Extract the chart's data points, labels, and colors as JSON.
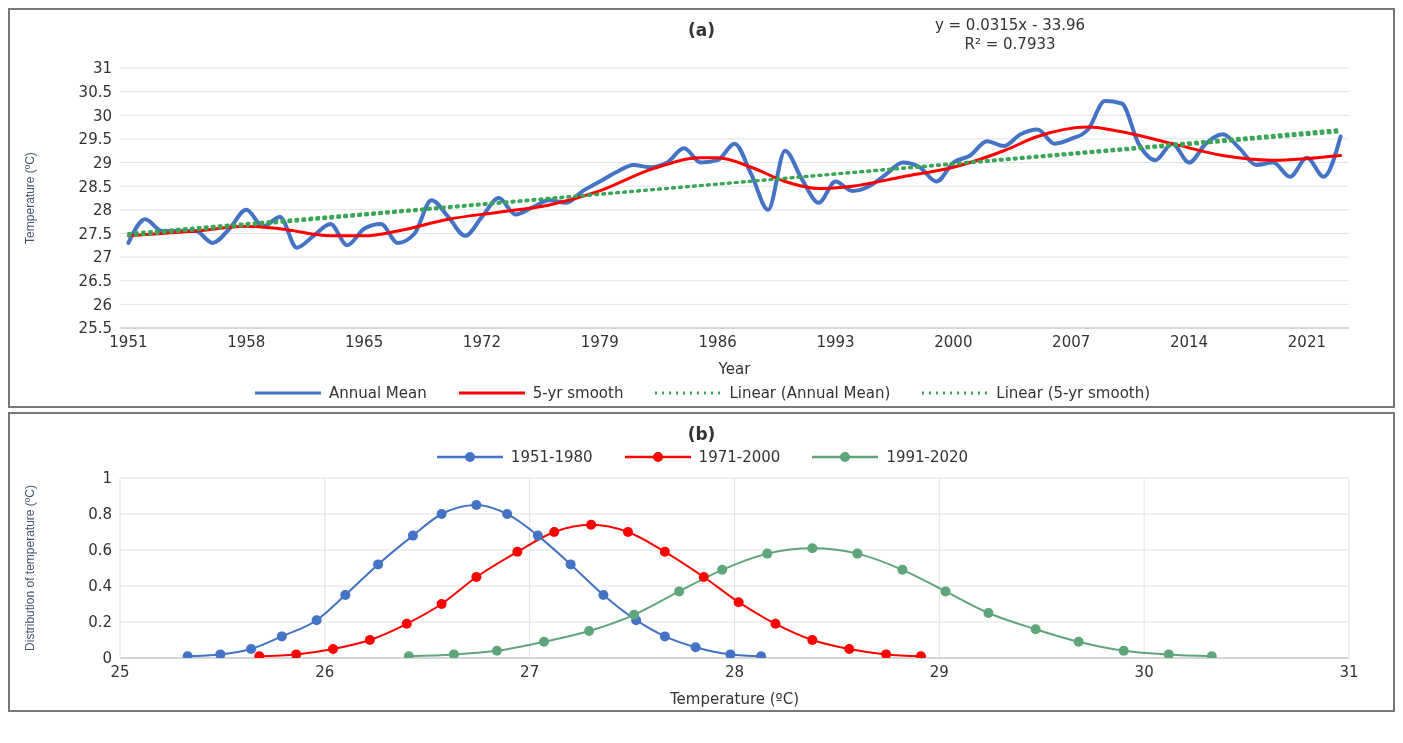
{
  "chart_data": [
    {
      "type": "line",
      "title": "(a)",
      "xlabel": "Year",
      "ylabel": "Temperature (ºC)",
      "annotations": [
        "y = 0.0315x - 33.96",
        "R² = 0.7933"
      ],
      "x": [
        1951,
        1952,
        1953,
        1954,
        1955,
        1956,
        1957,
        1958,
        1959,
        1960,
        1961,
        1962,
        1963,
        1964,
        1965,
        1966,
        1967,
        1968,
        1969,
        1970,
        1971,
        1972,
        1973,
        1974,
        1975,
        1976,
        1977,
        1978,
        1979,
        1980,
        1981,
        1982,
        1983,
        1984,
        1985,
        1986,
        1987,
        1988,
        1989,
        1990,
        1991,
        1992,
        1993,
        1994,
        1995,
        1996,
        1997,
        1998,
        1999,
        2000,
        2001,
        2002,
        2003,
        2004,
        2005,
        2006,
        2007,
        2008,
        2009,
        2010,
        2011,
        2012,
        2013,
        2014,
        2015,
        2016,
        2017,
        2018,
        2019,
        2020,
        2021,
        2022,
        2023
      ],
      "series": [
        {
          "name": "Annual Mean",
          "color": "#4472c4",
          "line_style": "solid",
          "values": [
            27.3,
            27.8,
            27.55,
            27.55,
            27.55,
            27.3,
            27.6,
            28.0,
            27.65,
            27.85,
            27.2,
            27.45,
            27.7,
            27.25,
            27.6,
            27.7,
            27.3,
            27.5,
            28.2,
            27.85,
            27.45,
            27.85,
            28.25,
            27.9,
            28.05,
            28.2,
            28.15,
            28.4,
            28.6,
            28.8,
            28.95,
            28.9,
            29.0,
            29.3,
            29.0,
            29.05,
            29.4,
            28.75,
            28.0,
            29.25,
            28.65,
            28.15,
            28.6,
            28.4,
            28.5,
            28.75,
            29.0,
            28.9,
            28.6,
            29.0,
            29.15,
            29.45,
            29.35,
            29.6,
            29.7,
            29.4,
            29.5,
            29.7,
            30.3,
            30.25,
            29.4,
            29.05,
            29.4,
            29.0,
            29.4,
            29.6,
            29.3,
            28.95,
            29.0,
            28.7,
            29.1,
            28.7,
            29.55
          ]
        },
        {
          "name": "5-yr smooth",
          "color": "#ff0000",
          "line_style": "solid",
          "x": [
            1951,
            1955,
            1958,
            1960,
            1963,
            1965,
            1967,
            1970,
            1973,
            1976,
            1979,
            1982,
            1985,
            1986,
            1988,
            1990,
            1992,
            1994,
            1997,
            2000,
            2003,
            2005,
            2008,
            2010,
            2013,
            2016,
            2019,
            2023
          ],
          "values": [
            27.45,
            27.55,
            27.65,
            27.6,
            27.45,
            27.45,
            27.55,
            27.8,
            27.95,
            28.1,
            28.4,
            28.85,
            29.1,
            29.1,
            28.9,
            28.6,
            28.45,
            28.5,
            28.7,
            28.9,
            29.25,
            29.55,
            29.75,
            29.65,
            29.4,
            29.15,
            29.05,
            29.15
          ]
        },
        {
          "name": "Linear (Annual Mean)",
          "color": "#3aa655",
          "line_style": "dotted",
          "x": [
            1951,
            2023
          ],
          "values": [
            27.45,
            29.7
          ]
        },
        {
          "name": "Linear (5-yr smooth)",
          "color": "#3aa655",
          "line_style": "dotted",
          "x": [
            1951,
            2023
          ],
          "values": [
            27.5,
            29.65
          ]
        }
      ],
      "xlim": [
        1950.5,
        2023.5
      ],
      "xticks": [
        1951,
        1958,
        1965,
        1972,
        1979,
        1986,
        1993,
        2000,
        2007,
        2014,
        2021
      ],
      "ylim": [
        25.5,
        31
      ],
      "yticks": [
        25.5,
        26,
        26.5,
        27,
        27.5,
        28,
        28.5,
        29,
        29.5,
        30,
        30.5,
        31
      ],
      "grid": "y",
      "legend": "bottom",
      "marker": "none"
    },
    {
      "type": "line",
      "title": "(b)",
      "xlabel": "Temperature (ºC)",
      "ylabel": "Distribution of temperature (ºC)",
      "series": [
        {
          "name": "1951-1980",
          "color": "#4472c4",
          "x": [
            25.33,
            25.49,
            25.64,
            25.79,
            25.96,
            26.1,
            26.26,
            26.43,
            26.57,
            26.74,
            26.89,
            27.04,
            27.2,
            27.36,
            27.52,
            27.66,
            27.81,
            27.98,
            28.13
          ],
          "values": [
            0.01,
            0.02,
            0.05,
            0.12,
            0.21,
            0.35,
            0.52,
            0.68,
            0.8,
            0.85,
            0.8,
            0.68,
            0.52,
            0.35,
            0.21,
            0.12,
            0.06,
            0.02,
            0.01
          ]
        },
        {
          "name": "1971-2000",
          "color": "#ff0000",
          "x": [
            25.68,
            25.86,
            26.04,
            26.22,
            26.4,
            26.57,
            26.74,
            26.94,
            27.12,
            27.3,
            27.48,
            27.66,
            27.85,
            28.02,
            28.2,
            28.38,
            28.56,
            28.74,
            28.91
          ],
          "values": [
            0.01,
            0.02,
            0.05,
            0.1,
            0.19,
            0.3,
            0.45,
            0.59,
            0.7,
            0.74,
            0.7,
            0.59,
            0.45,
            0.31,
            0.19,
            0.1,
            0.05,
            0.02,
            0.01
          ]
        },
        {
          "name": "1991-2020",
          "color": "#5fa57a",
          "x": [
            26.41,
            26.63,
            26.84,
            27.07,
            27.29,
            27.51,
            27.73,
            27.94,
            28.16,
            28.38,
            28.6,
            28.82,
            29.03,
            29.24,
            29.47,
            29.68,
            29.9,
            30.12,
            30.33
          ],
          "values": [
            0.01,
            0.02,
            0.04,
            0.09,
            0.15,
            0.24,
            0.37,
            0.49,
            0.58,
            0.61,
            0.58,
            0.49,
            0.37,
            0.25,
            0.16,
            0.09,
            0.04,
            0.02,
            0.01
          ]
        }
      ],
      "xlim": [
        25,
        31
      ],
      "xticks": [
        25,
        26,
        27,
        28,
        29,
        30,
        31
      ],
      "ylim": [
        0,
        1
      ],
      "yticks": [
        0,
        0.2,
        0.4,
        0.6,
        0.8,
        1
      ],
      "grid": true,
      "legend": "top",
      "marker": "circle"
    }
  ]
}
